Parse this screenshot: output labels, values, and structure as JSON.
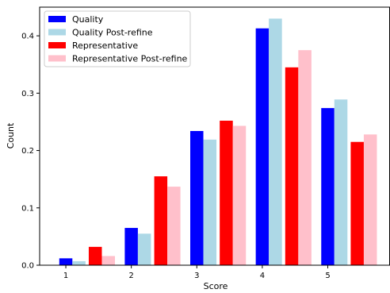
{
  "chart_data": {
    "type": "bar",
    "xlabel": "Score",
    "ylabel": "Count",
    "categories": [
      "1",
      "2",
      "3",
      "4",
      "5"
    ],
    "x_values": [
      1,
      2,
      3,
      4,
      5
    ],
    "xlim": [
      0.6,
      5.95
    ],
    "ylim": [
      0,
      0.45
    ],
    "yticks": [
      0.0,
      0.1,
      0.2,
      0.3,
      0.4
    ],
    "ytick_labels": [
      "0.0",
      "0.1",
      "0.2",
      "0.3",
      "0.4"
    ],
    "grid": false,
    "legend_position": "top-left",
    "series": [
      {
        "name": "Quality",
        "color": "#0000ff",
        "values": [
          0.012,
          0.065,
          0.234,
          0.413,
          0.274
        ]
      },
      {
        "name": "Quality Post-refine",
        "color": "#add8e6",
        "values": [
          0.007,
          0.055,
          0.219,
          0.43,
          0.289
        ]
      },
      {
        "name": "Representative",
        "color": "#ff0000",
        "values": [
          0.032,
          0.155,
          0.252,
          0.345,
          0.215
        ]
      },
      {
        "name": "Representative Post-refine",
        "color": "#ffc0cb",
        "values": [
          0.016,
          0.137,
          0.243,
          0.375,
          0.228
        ]
      }
    ]
  }
}
